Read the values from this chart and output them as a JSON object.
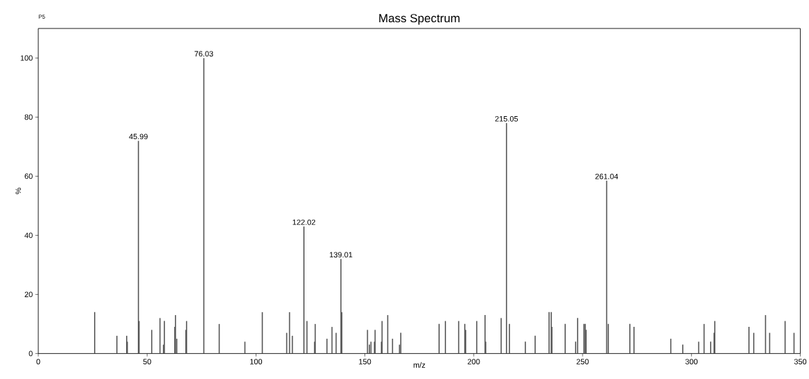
{
  "chart_data": {
    "type": "bar",
    "title": "Mass Spectrum",
    "xlabel": "m/z",
    "ylabel": "%",
    "annotations": [
      "P5",
      {
        "text": "45.99",
        "x": 45.99,
        "y": 72
      },
      {
        "text": "76.03",
        "x": 76.03,
        "y": 100
      },
      {
        "text": "122.02",
        "x": 122.02,
        "y": 43
      },
      {
        "text": "139.01",
        "x": 139.01,
        "y": 32
      },
      {
        "text": "215.05",
        "x": 215.05,
        "y": 78
      },
      {
        "text": "261.04",
        "x": 261.04,
        "y": 58.5
      }
    ],
    "x": [
      25.9,
      36.1,
      40.6,
      40.9,
      45.99,
      46.3,
      52.1,
      55.9,
      57.5,
      57.9,
      62.7,
      63.0,
      63.6,
      67.8,
      68.1,
      76.03,
      83.1,
      94.9,
      102.9,
      114.1,
      115.4,
      116.7,
      122.02,
      123.4,
      126.9,
      127.2,
      132.6,
      134.9,
      136.8,
      139.01,
      139.4,
      151.2,
      152.1,
      152.8,
      154.4,
      154.7,
      157.6,
      157.9,
      160.5,
      162.7,
      165.9,
      166.5,
      184.1,
      187.0,
      193.1,
      195.9,
      196.3,
      201.4,
      205.2,
      205.5,
      212.6,
      215.05,
      216.4,
      223.7,
      228.2,
      234.6,
      235.6,
      235.9,
      242.0,
      246.8,
      247.7,
      250.6,
      251.2,
      251.6,
      261.04,
      261.8,
      271.7,
      273.6,
      290.5,
      296.0,
      303.3,
      305.8,
      308.8,
      310.4,
      310.7,
      326.4,
      328.6,
      334.0,
      335.9,
      343.0,
      347.1
    ],
    "values": [
      14,
      6,
      6,
      4,
      72,
      11,
      8,
      12,
      3,
      11,
      9,
      13,
      5,
      8,
      11,
      100,
      10,
      4,
      14,
      7,
      14,
      6,
      43,
      11,
      4,
      10,
      5,
      9,
      7,
      32,
      14,
      8,
      3,
      4,
      4,
      8,
      4,
      11,
      13,
      5,
      3,
      7,
      10,
      11,
      11,
      10,
      8,
      11,
      13,
      4,
      12,
      78,
      10,
      4,
      6,
      14,
      14,
      9,
      10,
      4,
      12,
      10,
      10,
      8,
      58.5,
      10,
      10,
      9,
      5,
      3,
      4,
      10,
      4,
      7,
      11,
      9,
      7,
      13,
      7,
      11,
      7
    ],
    "color": "#555555",
    "xlim": [
      0,
      350
    ],
    "xticks": [
      0,
      50,
      100,
      150,
      200,
      250,
      300,
      350
    ],
    "ylim": [
      0,
      110
    ],
    "yticks": [
      0,
      20,
      40,
      60,
      80,
      100
    ],
    "grid": false
  }
}
